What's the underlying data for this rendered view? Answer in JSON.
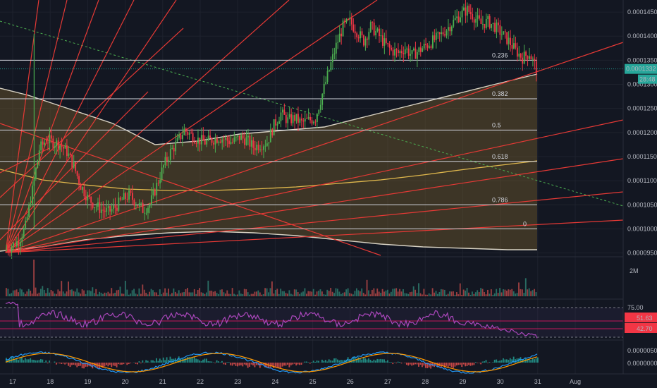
{
  "chart_data": {
    "type": "candlestick",
    "title": "",
    "price_axis": {
      "ylim": [
        9.45e-05,
        0.0001475
      ],
      "ticks": [
        "0.0001450",
        "0.0001400",
        "0.0001350",
        "0.0001300",
        "0.0001250",
        "0.0001200",
        "0.0001150",
        "0.0001100",
        "0.0001050",
        "0.0001000",
        "0.0000950"
      ],
      "tick_values": [
        0.000145,
        0.00014,
        0.000135,
        0.00013,
        0.000125,
        0.00012,
        0.000115,
        0.00011,
        0.000105,
        0.0001,
        9.5e-05
      ],
      "last_price_label": "0.0001332",
      "last_price": 0.0001332,
      "countdown_label": "28:48",
      "last_price_color": "#26a69a"
    },
    "time_axis": {
      "labels": [
        "17",
        "18",
        "19",
        "20",
        "21",
        "22",
        "23",
        "24",
        "25",
        "26",
        "27",
        "28",
        "29",
        "30",
        "31",
        "Aug"
      ]
    },
    "fibonacci": [
      {
        "label": "0.236",
        "value": 0.000135
      },
      {
        "label": "0.382",
        "value": 0.000127
      },
      {
        "label": "0.5",
        "value": 0.0001205
      },
      {
        "label": "0.618",
        "value": 0.000114
      },
      {
        "label": "0.786",
        "value": 0.000105
      },
      {
        "label": "0",
        "value": 0.0001
      }
    ],
    "close_path": [
      [
        0,
        9.55e-05
      ],
      [
        2,
        9.65e-05
      ],
      [
        3,
        9.75e-05
      ],
      [
        4,
        0.0001005
      ],
      [
        5,
        0.000108
      ],
      [
        6,
        0.0001165
      ],
      [
        7,
        0.0001185
      ],
      [
        8,
        0.000118
      ],
      [
        9,
        0.0001175
      ],
      [
        10,
        0.000116
      ],
      [
        11,
        0.000113
      ],
      [
        12,
        0.000109
      ],
      [
        13,
        0.0001065
      ],
      [
        14,
        0.000105
      ],
      [
        15,
        0.000104
      ],
      [
        16,
        0.0001035
      ],
      [
        17,
        0.0001045
      ],
      [
        18,
        0.000106
      ],
      [
        19,
        0.000107
      ],
      [
        20,
        0.0001055
      ],
      [
        21,
        0.000104
      ],
      [
        22,
        0.000105
      ],
      [
        23,
        0.000109
      ],
      [
        24,
        0.000113
      ],
      [
        25,
        0.000116
      ],
      [
        26,
        0.000118
      ],
      [
        27,
        0.0001205
      ],
      [
        28,
        0.0001195
      ],
      [
        29,
        0.0001185
      ],
      [
        30,
        0.000118
      ],
      [
        31,
        0.0001185
      ],
      [
        32,
        0.000119
      ],
      [
        33,
        0.0001185
      ],
      [
        34,
        0.000118
      ],
      [
        35,
        0.000119
      ],
      [
        36,
        0.0001185
      ],
      [
        37,
        0.000117
      ],
      [
        38,
        0.0001175
      ],
      [
        39,
        0.000118
      ],
      [
        40,
        0.0001215
      ],
      [
        41,
        0.000124
      ],
      [
        42,
        0.0001225
      ],
      [
        43,
        0.000123
      ],
      [
        44,
        0.000122
      ],
      [
        45,
        0.0001225
      ],
      [
        46,
        0.000123
      ],
      [
        47,
        0.000128
      ],
      [
        48,
        0.000133
      ],
      [
        49,
        0.000138
      ],
      [
        50,
        0.000142
      ],
      [
        51,
        0.000143
      ],
      [
        52,
        0.000141
      ],
      [
        53,
        0.000139
      ],
      [
        54,
        0.000142
      ],
      [
        55,
        0.0001405
      ],
      [
        56,
        0.0001385
      ],
      [
        57,
        0.000137
      ],
      [
        58,
        0.0001365
      ],
      [
        59,
        0.0001375
      ],
      [
        60,
        0.000136
      ],
      [
        61,
        0.000137
      ],
      [
        62,
        0.000138
      ],
      [
        63,
        0.000139
      ],
      [
        64,
        0.00014
      ],
      [
        65,
        0.0001415
      ],
      [
        66,
        0.000143
      ],
      [
        67,
        0.0001445
      ],
      [
        68,
        0.0001455
      ],
      [
        69,
        0.000144
      ],
      [
        70,
        0.0001425
      ],
      [
        71,
        0.000143
      ],
      [
        72,
        0.000142
      ],
      [
        73,
        0.0001405
      ],
      [
        74,
        0.000139
      ],
      [
        75,
        0.000137
      ],
      [
        76,
        0.0001355
      ],
      [
        77,
        0.0001365
      ],
      [
        78,
        0.0001332
      ]
    ],
    "spike": {
      "index": 4,
      "high": 0.0001405
    },
    "volume_axis_label": "2M",
    "rsi": {
      "levels": [
        "75.00",
        "51.63",
        "42.70"
      ],
      "level_colors": [
        "#787b86",
        "#f23645",
        "#f23645"
      ]
    },
    "macd": {
      "labels": [
        "0.0000050",
        "0.0000000"
      ]
    }
  }
}
